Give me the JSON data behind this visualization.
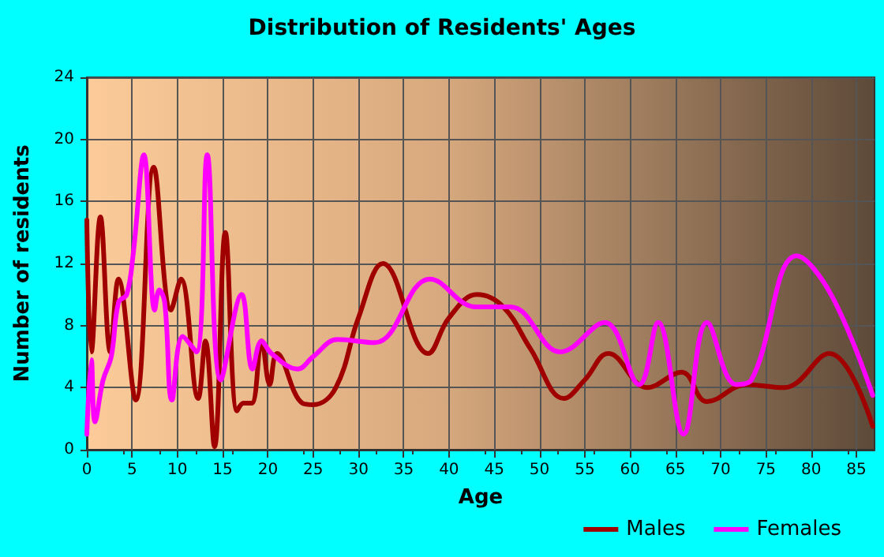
{
  "chart_data": {
    "type": "line",
    "title": "Distribution of Residents' Ages",
    "xlabel": "Age",
    "ylabel": "Number of residents",
    "xlim": [
      0,
      87
    ],
    "xticks": [
      0,
      5,
      10,
      15,
      20,
      25,
      30,
      35,
      40,
      45,
      50,
      55,
      60,
      65,
      70,
      75,
      80,
      85
    ],
    "ylim": [
      0,
      24
    ],
    "yticks": [
      0,
      4,
      8,
      12,
      16,
      20,
      24
    ],
    "grid": true,
    "legend": "bottom right",
    "marker": "none",
    "line_style": "solid",
    "series": [
      {
        "name": "Males",
        "color": "#a00000",
        "x": [
          0,
          0.5,
          1.5,
          2.6,
          3.5,
          5.4,
          7.4,
          9.3,
          10.4,
          12.3,
          13.1,
          14.1,
          15.3,
          16.6,
          17.3,
          18.2,
          19.3,
          20.2,
          21,
          23.8,
          25,
          27.5,
          30,
          32.7,
          37.7,
          40,
          43.1,
          46,
          49,
          52.7,
          55,
          57.6,
          61.9,
          65.7,
          68.5,
          72.9,
          77,
          82,
          86.8
        ],
        "values": [
          14.8,
          6.3,
          15,
          6.3,
          11,
          3.2,
          18.2,
          9,
          11,
          3.3,
          7,
          0.2,
          14,
          2.5,
          3,
          3,
          7,
          4.2,
          6.2,
          3,
          2.9,
          4,
          8.5,
          12,
          6.2,
          8.5,
          10,
          9.2,
          6.5,
          3.3,
          4.5,
          6.2,
          4,
          5,
          3.1,
          4.2,
          4,
          6.2,
          1.5
        ]
      },
      {
        "name": "Females",
        "color": "#ff00ff",
        "x": [
          0,
          0.5,
          0.9,
          1.8,
          2.7,
          3.5,
          4.4,
          5.1,
          6.3,
          7.5,
          8,
          8.6,
          9.4,
          10.6,
          12.1,
          13.3,
          14.8,
          17.1,
          18.3,
          19.3,
          20.4,
          23.3,
          25,
          27.7,
          31.8,
          37.9,
          43,
          46.8,
          52.3,
          57.2,
          61,
          63.1,
          65.9,
          68.5,
          71.7,
          73.4,
          78.4,
          82.2,
          86.8
        ],
        "values": [
          1,
          5.8,
          1.8,
          4.5,
          6,
          9.5,
          10,
          12.5,
          19,
          9,
          10.3,
          9.5,
          3.2,
          7.3,
          6.3,
          19,
          4.5,
          10,
          5.2,
          7,
          6.2,
          5.2,
          6,
          7.1,
          6.9,
          11,
          9.2,
          9.2,
          6.3,
          8.2,
          4.2,
          8.2,
          1,
          8.2,
          4.2,
          4.5,
          12.5,
          10,
          3.5
        ]
      }
    ]
  }
}
